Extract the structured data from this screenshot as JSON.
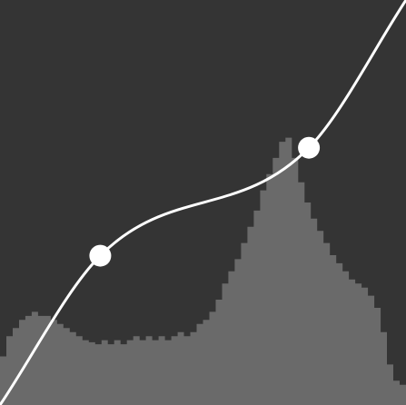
{
  "editor": {
    "background_color": "#343434",
    "histogram_color": "#6a6a6a",
    "curve_color": "#ffffff",
    "point_color": "#ffffff"
  },
  "curve": {
    "input_range": [
      0,
      255
    ],
    "output_range": [
      0,
      255
    ],
    "points": [
      {
        "input": 0,
        "output": 0
      },
      {
        "input": 63,
        "output": 94
      },
      {
        "input": 194,
        "output": 162
      },
      {
        "input": 255,
        "output": 255
      }
    ],
    "handles": [
      1,
      2
    ]
  },
  "histogram": {
    "levels": [
      0.12,
      0.17,
      0.19,
      0.21,
      0.22,
      0.23,
      0.22,
      0.22,
      0.21,
      0.2,
      0.19,
      0.18,
      0.17,
      0.16,
      0.155,
      0.15,
      0.16,
      0.15,
      0.16,
      0.15,
      0.16,
      0.17,
      0.16,
      0.17,
      0.16,
      0.17,
      0.16,
      0.17,
      0.18,
      0.17,
      0.18,
      0.2,
      0.21,
      0.23,
      0.26,
      0.3,
      0.33,
      0.36,
      0.4,
      0.44,
      0.48,
      0.53,
      0.57,
      0.61,
      0.65,
      0.66,
      0.61,
      0.55,
      0.5,
      0.46,
      0.43,
      0.4,
      0.37,
      0.35,
      0.33,
      0.31,
      0.3,
      0.29,
      0.27,
      0.24,
      0.18,
      0.1,
      0.06,
      0.05
    ]
  }
}
